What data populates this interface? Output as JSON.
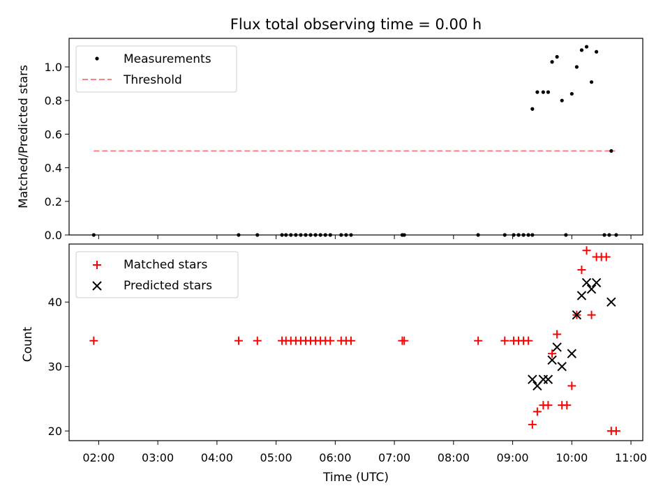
{
  "title": "Flux total observing time = 0.00 h",
  "chart_data": [
    {
      "type": "scatter",
      "ylabel": "Matched/Predicted stars",
      "ylim": [
        0,
        1.17
      ],
      "yticks": [
        0.0,
        0.2,
        0.4,
        0.6,
        0.8,
        1.0
      ],
      "ytick_labels": [
        "0.0",
        "0.2",
        "0.4",
        "0.6",
        "0.8",
        "1.0"
      ],
      "legend_position": "top-left",
      "threshold": {
        "name": "Threshold",
        "value": 0.5,
        "x_start": "01:55",
        "x_end": "10:44",
        "color": "#ff7f7f",
        "style": "dashed"
      },
      "series": [
        {
          "name": "Measurements",
          "color": "#000000",
          "marker": "dot",
          "points": [
            {
              "x": "01:55",
              "y": 0
            },
            {
              "x": "04:22",
              "y": 0
            },
            {
              "x": "04:41",
              "y": 0
            },
            {
              "x": "05:06",
              "y": 0
            },
            {
              "x": "05:10",
              "y": 0
            },
            {
              "x": "05:15",
              "y": 0
            },
            {
              "x": "05:20",
              "y": 0
            },
            {
              "x": "05:25",
              "y": 0
            },
            {
              "x": "05:30",
              "y": 0
            },
            {
              "x": "05:35",
              "y": 0
            },
            {
              "x": "05:40",
              "y": 0
            },
            {
              "x": "05:45",
              "y": 0
            },
            {
              "x": "05:50",
              "y": 0
            },
            {
              "x": "05:55",
              "y": 0
            },
            {
              "x": "06:06",
              "y": 0
            },
            {
              "x": "06:11",
              "y": 0
            },
            {
              "x": "06:16",
              "y": 0
            },
            {
              "x": "07:08",
              "y": 0
            },
            {
              "x": "07:10",
              "y": 0
            },
            {
              "x": "08:25",
              "y": 0
            },
            {
              "x": "08:52",
              "y": 0
            },
            {
              "x": "09:01",
              "y": 0
            },
            {
              "x": "09:06",
              "y": 0
            },
            {
              "x": "09:11",
              "y": 0
            },
            {
              "x": "09:16",
              "y": 0
            },
            {
              "x": "09:20",
              "y": 0
            },
            {
              "x": "09:54",
              "y": 0
            },
            {
              "x": "10:33",
              "y": 0
            },
            {
              "x": "10:38",
              "y": 0
            },
            {
              "x": "10:45",
              "y": 0
            },
            {
              "x": "09:20",
              "y": 0.75
            },
            {
              "x": "09:25",
              "y": 0.85
            },
            {
              "x": "09:31",
              "y": 0.85
            },
            {
              "x": "09:36",
              "y": 0.85
            },
            {
              "x": "09:40",
              "y": 1.03
            },
            {
              "x": "09:45",
              "y": 1.06
            },
            {
              "x": "09:50",
              "y": 0.8
            },
            {
              "x": "10:00",
              "y": 0.84
            },
            {
              "x": "10:05",
              "y": 1.0
            },
            {
              "x": "10:10",
              "y": 1.1
            },
            {
              "x": "10:15",
              "y": 1.12
            },
            {
              "x": "10:20",
              "y": 0.91
            },
            {
              "x": "10:25",
              "y": 1.09
            },
            {
              "x": "10:40",
              "y": 0.5
            }
          ]
        }
      ]
    },
    {
      "type": "scatter",
      "ylabel": "Count",
      "xlabel": "Time (UTC)",
      "ylim": [
        18.5,
        49
      ],
      "yticks": [
        20,
        30,
        40
      ],
      "ytick_labels": [
        "20",
        "30",
        "40"
      ],
      "xlim": [
        "01:30",
        "11:12"
      ],
      "xticks": [
        "02:00",
        "03:00",
        "04:00",
        "05:00",
        "06:00",
        "07:00",
        "08:00",
        "09:00",
        "10:00",
        "11:00"
      ],
      "legend_position": "top-left",
      "series": [
        {
          "name": "Matched stars",
          "color": "#ff0000",
          "marker": "plus",
          "points": [
            {
              "x": "01:55",
              "y": 34
            },
            {
              "x": "04:22",
              "y": 34
            },
            {
              "x": "04:41",
              "y": 34
            },
            {
              "x": "05:06",
              "y": 34
            },
            {
              "x": "05:10",
              "y": 34
            },
            {
              "x": "05:15",
              "y": 34
            },
            {
              "x": "05:20",
              "y": 34
            },
            {
              "x": "05:25",
              "y": 34
            },
            {
              "x": "05:30",
              "y": 34
            },
            {
              "x": "05:35",
              "y": 34
            },
            {
              "x": "05:40",
              "y": 34
            },
            {
              "x": "05:45",
              "y": 34
            },
            {
              "x": "05:50",
              "y": 34
            },
            {
              "x": "05:55",
              "y": 34
            },
            {
              "x": "06:06",
              "y": 34
            },
            {
              "x": "06:11",
              "y": 34
            },
            {
              "x": "06:16",
              "y": 34
            },
            {
              "x": "07:08",
              "y": 34
            },
            {
              "x": "07:10",
              "y": 34
            },
            {
              "x": "08:25",
              "y": 34
            },
            {
              "x": "08:52",
              "y": 34
            },
            {
              "x": "09:01",
              "y": 34
            },
            {
              "x": "09:06",
              "y": 34
            },
            {
              "x": "09:11",
              "y": 34
            },
            {
              "x": "09:16",
              "y": 34
            },
            {
              "x": "09:20",
              "y": 21
            },
            {
              "x": "09:25",
              "y": 23
            },
            {
              "x": "09:31",
              "y": 24
            },
            {
              "x": "09:36",
              "y": 24
            },
            {
              "x": "09:40",
              "y": 32
            },
            {
              "x": "09:45",
              "y": 35
            },
            {
              "x": "09:50",
              "y": 24
            },
            {
              "x": "09:55",
              "y": 24
            },
            {
              "x": "10:00",
              "y": 27
            },
            {
              "x": "10:05",
              "y": 38
            },
            {
              "x": "10:10",
              "y": 45
            },
            {
              "x": "10:15",
              "y": 48
            },
            {
              "x": "10:20",
              "y": 38
            },
            {
              "x": "10:25",
              "y": 47
            },
            {
              "x": "10:30",
              "y": 47
            },
            {
              "x": "10:35",
              "y": 47
            },
            {
              "x": "10:40",
              "y": 20
            },
            {
              "x": "10:45",
              "y": 20
            }
          ]
        },
        {
          "name": "Predicted stars",
          "color": "#000000",
          "marker": "x",
          "points": [
            {
              "x": "09:20",
              "y": 28
            },
            {
              "x": "09:25",
              "y": 27
            },
            {
              "x": "09:31",
              "y": 28
            },
            {
              "x": "09:36",
              "y": 28
            },
            {
              "x": "09:40",
              "y": 31
            },
            {
              "x": "09:45",
              "y": 33
            },
            {
              "x": "09:50",
              "y": 30
            },
            {
              "x": "10:00",
              "y": 32
            },
            {
              "x": "10:05",
              "y": 38
            },
            {
              "x": "10:10",
              "y": 41
            },
            {
              "x": "10:15",
              "y": 43
            },
            {
              "x": "10:20",
              "y": 42
            },
            {
              "x": "10:25",
              "y": 43
            },
            {
              "x": "10:40",
              "y": 40
            }
          ]
        }
      ]
    }
  ]
}
